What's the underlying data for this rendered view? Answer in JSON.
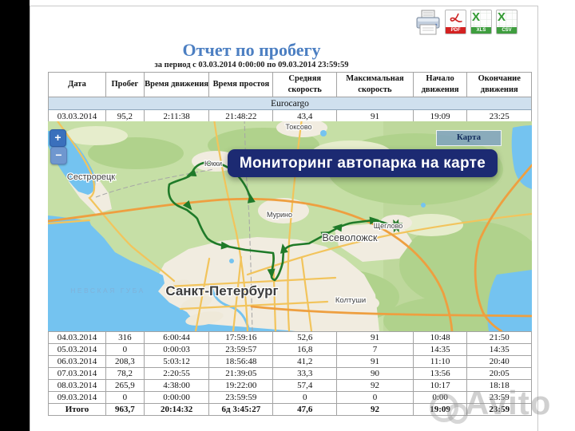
{
  "report": {
    "title": "Отчет по пробегу",
    "subtitle": "за период с 03.03.2014 0:00:00 по 09.03.2014 23:59:59",
    "columns": [
      "Дата",
      "Пробег",
      "Время движения",
      "Время простоя",
      "Средняя скорость",
      "Максимальная скорость",
      "Начало движения",
      "Окончание движения"
    ],
    "vehicle_group": "Eurocargo",
    "rows_top": [
      [
        "03.03.2014",
        "95,2",
        "2:11:38",
        "21:48:22",
        "43,4",
        "91",
        "19:09",
        "23:25"
      ]
    ],
    "rows_bottom": [
      [
        "04.03.2014",
        "316",
        "6:00:44",
        "17:59:16",
        "52,6",
        "91",
        "10:48",
        "21:50"
      ],
      [
        "05.03.2014",
        "0",
        "0:00:03",
        "23:59:57",
        "16,8",
        "7",
        "14:35",
        "14:35"
      ],
      [
        "06.03.2014",
        "208,3",
        "5:03:12",
        "18:56:48",
        "41,2",
        "91",
        "11:10",
        "20:40"
      ],
      [
        "07.03.2014",
        "78,2",
        "2:20:55",
        "21:39:05",
        "33,3",
        "90",
        "13:56",
        "20:05"
      ],
      [
        "08.03.2014",
        "265,9",
        "4:38:00",
        "19:22:00",
        "57,4",
        "92",
        "10:17",
        "18:18"
      ],
      [
        "09.03.2014",
        "0",
        "0:00:00",
        "23:59:59",
        "0",
        "0",
        "0:00",
        "23:59"
      ]
    ],
    "total_rows": [
      [
        "Итого",
        "963,7",
        "20:14:32",
        "6д 3:45:27",
        "47,6",
        "92",
        "19:09",
        "23:59"
      ]
    ]
  },
  "toolbar": {
    "print_label": "Печать",
    "pdf_label": "PDF",
    "xls_label": "XLS",
    "csv_label": "CSV"
  },
  "map": {
    "view_button": "Карта",
    "zoom_in": "+",
    "zoom_out": "−",
    "banner": "Мониторинг автопарка на карте",
    "labels": {
      "sestroretsk": "Сестрорецк",
      "yukki": "Юкки",
      "toksovo": "Токсово",
      "murino": "Мурино",
      "vsevolozhsk": "Всеволожск",
      "scheglovo": "Щеглово",
      "spb": "Санкт-Петербург",
      "koltushi": "Колтуши",
      "neva_bay": "НЕВСКАЯ ГУБА"
    }
  },
  "watermark": "Avito",
  "colors": {
    "title_blue": "#4c7fc2",
    "banner_navy": "#1c2a72",
    "group_row": "#cfe0ee",
    "route_green": "#1f7a29",
    "water_blue": "#74c3f0"
  }
}
